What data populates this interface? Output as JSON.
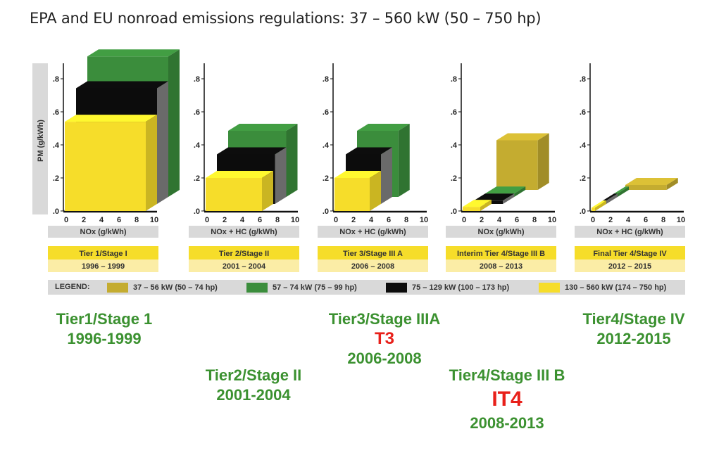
{
  "title": "EPA and EU nonroad emissions regulations: 37 – 560 kW (50 – 750 hp)",
  "colors": {
    "olive": "#c4ac30",
    "green": "#3b8d3c",
    "black": "#0c0c0c",
    "yellow": "#f6dd2a",
    "band_gray": "#d9d9d9",
    "stage_yellow": "#f6dd2a",
    "stage_light": "#fbeda6",
    "anno_green": "#3b9130",
    "anno_red": "#e8201a"
  },
  "chart_data": {
    "type": "bar",
    "ylabel": "PM (g/kWh)",
    "ylim": [
      0,
      0.8
    ],
    "xlim": [
      0,
      10
    ],
    "y_ticks": [
      ".0",
      ".2",
      ".4",
      ".6",
      ".8"
    ],
    "x_ticks": [
      "0",
      "2",
      "4",
      "6",
      "8",
      "10"
    ],
    "series_legend": [
      {
        "name": "37 – 56 kW (50 – 74 hp)",
        "color": "#c4ac30"
      },
      {
        "name": "57 – 74 kW (75 – 99 hp)",
        "color": "#3b8d3c"
      },
      {
        "name": "75 – 129 kW (100 – 173 hp)",
        "color": "#0c0c0c"
      },
      {
        "name": "130 – 560 kW (174 – 750 hp)",
        "color": "#f6dd2a"
      }
    ],
    "panels": [
      {
        "xlabel": "NOx (g/kWh)",
        "stage": "Tier 1/Stage I",
        "years": "1996 – 1999",
        "bars": [
          {
            "series": "57 – 74 kW (75 – 99 hp)",
            "nox": 9.2,
            "pm": 0.85
          },
          {
            "series": "75 – 129 kW (100 – 173 hp)",
            "nox": 9.2,
            "pm": 0.7
          },
          {
            "series": "130 – 560 kW (174 – 750 hp)",
            "nox": 9.2,
            "pm": 0.54
          }
        ]
      },
      {
        "xlabel": "NOx + HC (g/kWh)",
        "stage": "Tier 2/Stage II",
        "years": "2001 – 2004",
        "bars": [
          {
            "series": "57 – 74 kW (75 – 99 hp)",
            "nox": 6.6,
            "pm": 0.4
          },
          {
            "series": "75 – 129 kW (100 – 173 hp)",
            "nox": 6.6,
            "pm": 0.3
          },
          {
            "series": "130 – 560 kW (174 – 750 hp)",
            "nox": 6.4,
            "pm": 0.2
          }
        ]
      },
      {
        "xlabel": "NOx + HC (g/kWh)",
        "stage": "Tier 3/Stage III A",
        "years": "2006 – 2008",
        "bars": [
          {
            "series": "57 – 74 kW (75 – 99 hp)",
            "nox": 4.7,
            "pm": 0.4
          },
          {
            "series": "75 – 129 kW (100 – 173 hp)",
            "nox": 4.0,
            "pm": 0.3
          },
          {
            "series": "130 – 560 kW (174 – 750 hp)",
            "nox": 4.0,
            "pm": 0.2
          }
        ]
      },
      {
        "xlabel": "NOx (g/kWh)",
        "stage": "Interim Tier 4/Stage III B",
        "years": "2008 – 2013",
        "bars": [
          {
            "series": "37 – 56 kW (50 – 74 hp)",
            "nox": 4.7,
            "pm": 0.3
          },
          {
            "series": "57 – 74 kW (75 – 99 hp)",
            "nox": 3.3,
            "pm": 0.02
          },
          {
            "series": "75 – 129 kW (100 – 173 hp)",
            "nox": 3.3,
            "pm": 0.02
          },
          {
            "series": "130 – 560 kW (174 – 750 hp)",
            "nox": 2.0,
            "pm": 0.025
          }
        ]
      },
      {
        "xlabel": "NOx + HC (g/kWh)",
        "stage": "Final Tier 4/Stage IV",
        "years": "2012 – 2015",
        "bars": [
          {
            "series": "37 – 56 kW (50 – 74 hp)",
            "nox": 4.7,
            "pm": 0.03
          },
          {
            "series": "57 – 74 kW (75 – 99 hp)",
            "nox": 0.4,
            "pm": 0.02
          },
          {
            "series": "75 – 129 kW (100 – 173 hp)",
            "nox": 0.4,
            "pm": 0.02
          },
          {
            "series": "130 – 560 kW (174 – 750 hp)",
            "nox": 0.4,
            "pm": 0.02
          }
        ]
      }
    ]
  },
  "legend": {
    "label": "LEGEND:",
    "items": [
      "37 – 56 kW (50 – 74 hp)",
      "57 – 74 kW (75 – 99 hp)",
      "75 – 129 kW (100 – 173 hp)",
      "130 – 560 kW (174 – 750 hp)"
    ]
  },
  "annotations": {
    "tier1": {
      "name": "Tier1/Stage 1",
      "years": "1996-1999"
    },
    "tier2": {
      "name": "Tier2/Stage II",
      "years": "2001-2004"
    },
    "tier3": {
      "name": "Tier3/Stage IIIA",
      "code": "T3",
      "years": "2006-2008"
    },
    "tier4i": {
      "name": "Tier4/Stage III B",
      "code": "IT4",
      "years": "2008-2013"
    },
    "tier4f": {
      "name": "Tier4/Stage IV",
      "years": "2012-2015"
    }
  }
}
